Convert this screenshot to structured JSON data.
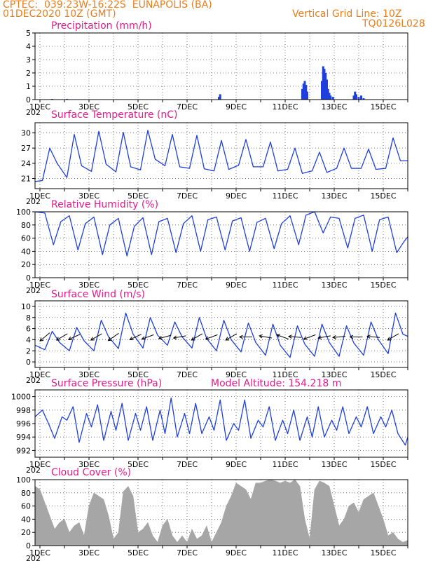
{
  "header": {
    "line1": "CPTEC:  039:23W-16:22S  EUNAPOLIS (BA)",
    "line2": "01DEC2020 10Z (GMT)",
    "right1": "Vertical Grid Line: 10Z",
    "right2": "TQ0126L028"
  },
  "x_axis": {
    "labels": [
      "1DEC",
      "3DEC",
      "5DEC",
      "7DEC",
      "9DEC",
      "11DEC",
      "13DEC",
      "15DEC"
    ],
    "label_days": [
      1,
      3,
      5,
      7,
      9,
      11,
      13,
      15
    ],
    "year_stub": "202"
  },
  "colors": {
    "line": "#1f3fdc",
    "bar": "#1f3fdc",
    "cloud": "#a6a6a6",
    "title": "#e21c8c",
    "header": "#e87e1c"
  },
  "chart_data": [
    {
      "id": "precip",
      "type": "bar",
      "title": "Precipitation (mm/h)",
      "ylim": [
        0,
        5
      ],
      "yticks": [
        0,
        1,
        2,
        3,
        4,
        5
      ],
      "x": [
        1.5,
        2.1,
        8.3,
        8.35,
        11.7,
        11.75,
        11.8,
        11.85,
        11.9,
        12.5,
        12.55,
        12.6,
        12.65,
        12.7,
        12.75,
        12.8,
        12.85,
        12.95,
        13.8,
        13.85,
        13.9,
        14.0,
        14.1,
        14.2
      ],
      "values": [
        0.05,
        0.05,
        0.2,
        0.4,
        0.8,
        1.2,
        1.4,
        1.1,
        0.6,
        1.4,
        2.5,
        2.3,
        2.0,
        1.5,
        0.8,
        0.5,
        0.3,
        0.2,
        0.3,
        0.6,
        0.4,
        0.2,
        0.3,
        0.1
      ]
    },
    {
      "id": "temp",
      "type": "line",
      "title": "Surface Temperature (nC)",
      "ylim": [
        19,
        32
      ],
      "yticks": [
        21,
        24,
        27,
        30
      ],
      "x": [
        0.8,
        1.1,
        1.4,
        1.7,
        2.1,
        2.4,
        2.7,
        3.1,
        3.4,
        3.7,
        4.1,
        4.4,
        4.7,
        5.1,
        5.4,
        5.7,
        6.1,
        6.4,
        6.7,
        7.1,
        7.4,
        7.7,
        8.1,
        8.4,
        8.7,
        9.1,
        9.4,
        9.7,
        10.1,
        10.4,
        10.7,
        11.1,
        11.4,
        11.7,
        12.1,
        12.4,
        12.7,
        13.1,
        13.4,
        13.7,
        14.1,
        14.4,
        14.7,
        15.1,
        15.4,
        15.7,
        16.0
      ],
      "values": [
        20.4,
        20.6,
        27.0,
        24.0,
        21.2,
        29.7,
        23.5,
        22.4,
        30.3,
        23.8,
        22.3,
        30.1,
        23.3,
        22.7,
        30.5,
        24.8,
        23.5,
        29.7,
        23.3,
        23.0,
        29.5,
        22.9,
        22.5,
        28.5,
        22.8,
        23.6,
        28.7,
        23.3,
        23.3,
        28.2,
        22.5,
        22.8,
        27.0,
        22.0,
        22.5,
        26.2,
        22.2,
        23.0,
        27.0,
        23.0,
        23.0,
        26.8,
        22.8,
        23.0,
        29.0,
        24.5,
        24.5
      ]
    },
    {
      "id": "rh",
      "type": "line",
      "title": "Relative Humidity (%)",
      "ylim": [
        0,
        100
      ],
      "yticks": [
        0,
        20,
        40,
        60,
        80,
        100
      ],
      "x": [
        0.8,
        1.2,
        1.55,
        1.85,
        2.2,
        2.55,
        2.85,
        3.2,
        3.55,
        3.85,
        4.2,
        4.55,
        4.85,
        5.2,
        5.55,
        5.85,
        6.2,
        6.55,
        6.85,
        7.2,
        7.55,
        7.85,
        8.2,
        8.55,
        8.85,
        9.2,
        9.55,
        9.85,
        10.2,
        10.55,
        10.85,
        11.2,
        11.55,
        11.85,
        12.2,
        12.55,
        12.85,
        13.2,
        13.55,
        13.85,
        14.2,
        14.55,
        14.85,
        15.2,
        15.55,
        15.85,
        16.0
      ],
      "values": [
        100,
        98,
        50,
        85,
        94,
        42,
        82,
        92,
        35,
        80,
        90,
        33,
        78,
        91,
        35,
        85,
        90,
        38,
        82,
        94,
        40,
        88,
        92,
        42,
        86,
        91,
        40,
        84,
        90,
        44,
        82,
        94,
        50,
        95,
        100,
        68,
        92,
        90,
        45,
        90,
        95,
        40,
        88,
        92,
        38,
        55,
        62
      ]
    },
    {
      "id": "wind",
      "type": "line",
      "title": "Surface Wind (m/s)",
      "ylim": [
        -1,
        11
      ],
      "yticks": [
        0,
        2,
        4,
        6,
        8,
        10
      ],
      "x": [
        0.8,
        1.2,
        1.5,
        1.8,
        2.2,
        2.5,
        2.8,
        3.2,
        3.5,
        3.8,
        4.2,
        4.5,
        4.8,
        5.2,
        5.5,
        5.8,
        6.2,
        6.5,
        6.8,
        7.2,
        7.5,
        7.8,
        8.2,
        8.5,
        8.8,
        9.2,
        9.5,
        9.8,
        10.2,
        10.5,
        10.8,
        11.2,
        11.5,
        11.8,
        12.2,
        12.5,
        12.8,
        13.2,
        13.5,
        13.8,
        14.2,
        14.5,
        14.8,
        15.2,
        15.5,
        15.8,
        16.0
      ],
      "values": [
        3,
        2.2,
        5.5,
        3.5,
        2.0,
        6.2,
        3.8,
        2.0,
        7.5,
        4.5,
        2.4,
        8.8,
        5.0,
        2.5,
        8.0,
        4.8,
        3.0,
        7.2,
        4.5,
        2.5,
        8.0,
        4.2,
        2.0,
        7.5,
        4.0,
        1.8,
        7.0,
        3.5,
        1.2,
        6.8,
        3.0,
        0.8,
        6.5,
        3.2,
        1.0,
        6.8,
        3.5,
        1.0,
        6.5,
        3.4,
        1.2,
        7.2,
        4.0,
        1.5,
        8.8,
        5.0,
        4.6
      ],
      "arrows": [
        {
          "day": 1.2,
          "dir_deg": 220
        },
        {
          "day": 1.9,
          "dir_deg": 210
        },
        {
          "day": 2.4,
          "dir_deg": 205
        },
        {
          "day": 3.3,
          "dir_deg": 210
        },
        {
          "day": 4.0,
          "dir_deg": 215
        },
        {
          "day": 4.9,
          "dir_deg": 205
        },
        {
          "day": 5.4,
          "dir_deg": 200
        },
        {
          "day": 6.1,
          "dir_deg": 195
        },
        {
          "day": 6.7,
          "dir_deg": 190
        },
        {
          "day": 7.4,
          "dir_deg": 210
        },
        {
          "day": 8.0,
          "dir_deg": 200
        },
        {
          "day": 8.8,
          "dir_deg": 210
        },
        {
          "day": 9.4,
          "dir_deg": 180
        },
        {
          "day": 10.2,
          "dir_deg": 170
        },
        {
          "day": 10.9,
          "dir_deg": 160
        },
        {
          "day": 11.4,
          "dir_deg": 175
        },
        {
          "day": 12.0,
          "dir_deg": 200
        },
        {
          "day": 12.6,
          "dir_deg": 190
        },
        {
          "day": 13.2,
          "dir_deg": 185
        },
        {
          "day": 13.9,
          "dir_deg": 180
        },
        {
          "day": 14.6,
          "dir_deg": 175
        },
        {
          "day": 15.4,
          "dir_deg": 210
        }
      ]
    },
    {
      "id": "pres",
      "type": "line",
      "title": "Surface Pressure (hPa)",
      "subtitle": "Model Altitude: 154.218 m",
      "ylim": [
        991,
        1001
      ],
      "yticks": [
        992,
        994,
        996,
        998,
        1000
      ],
      "x": [
        0.8,
        1.1,
        1.35,
        1.6,
        1.9,
        2.1,
        2.35,
        2.6,
        2.9,
        3.1,
        3.35,
        3.6,
        3.9,
        4.1,
        4.35,
        4.6,
        4.9,
        5.1,
        5.35,
        5.6,
        5.9,
        6.1,
        6.35,
        6.6,
        6.9,
        7.1,
        7.35,
        7.6,
        7.9,
        8.1,
        8.35,
        8.6,
        8.9,
        9.1,
        9.35,
        9.6,
        9.9,
        10.1,
        10.35,
        10.6,
        10.9,
        11.1,
        11.35,
        11.6,
        11.9,
        12.1,
        12.35,
        12.6,
        12.9,
        13.1,
        13.35,
        13.6,
        13.9,
        14.1,
        14.35,
        14.6,
        14.9,
        15.1,
        15.35,
        15.6,
        15.9,
        16.0
      ],
      "values": [
        997,
        998,
        996,
        993.8,
        997,
        996.5,
        998.5,
        993.2,
        997.5,
        995.5,
        998.8,
        993.5,
        997.8,
        995,
        999,
        993.5,
        997.5,
        995,
        998.5,
        993.5,
        998,
        994.5,
        999.8,
        994,
        997.5,
        994.5,
        999,
        994.5,
        997,
        995,
        999.5,
        993.5,
        996,
        995,
        999.5,
        993.8,
        996.5,
        995.5,
        998.5,
        993.5,
        996.5,
        994.5,
        998,
        993.5,
        997,
        994,
        998.5,
        994,
        996.5,
        995,
        998.5,
        994.5,
        997,
        995.5,
        998.5,
        994.5,
        997,
        995.5,
        998,
        994.5,
        992.8,
        994
      ]
    },
    {
      "id": "cloud",
      "type": "area",
      "title": "Cloud Cover (%)",
      "ylim": [
        0,
        100
      ],
      "yticks": [
        0,
        20,
        40,
        60,
        80,
        100
      ],
      "x": [
        0.8,
        1.0,
        1.2,
        1.4,
        1.6,
        1.8,
        2.0,
        2.2,
        2.4,
        2.6,
        2.8,
        3.0,
        3.2,
        3.4,
        3.6,
        3.8,
        4.0,
        4.2,
        4.4,
        4.6,
        4.8,
        5.0,
        5.2,
        5.4,
        5.6,
        5.8,
        6.0,
        6.2,
        6.4,
        6.6,
        6.8,
        7.0,
        7.2,
        7.4,
        7.6,
        7.8,
        8.0,
        8.2,
        8.4,
        8.6,
        8.8,
        9.0,
        9.2,
        9.4,
        9.6,
        9.8,
        10.0,
        10.2,
        10.4,
        10.6,
        10.8,
        11.0,
        11.2,
        11.4,
        11.6,
        11.8,
        12.0,
        12.2,
        12.4,
        12.6,
        12.8,
        13.0,
        13.2,
        13.4,
        13.6,
        13.8,
        14.0,
        14.2,
        14.4,
        14.6,
        14.8,
        15.0,
        15.2,
        15.4,
        15.6,
        15.8,
        16.0
      ],
      "values": [
        90,
        85,
        65,
        45,
        25,
        35,
        40,
        20,
        30,
        35,
        15,
        60,
        80,
        75,
        70,
        45,
        10,
        20,
        82,
        90,
        75,
        20,
        25,
        35,
        15,
        5,
        30,
        40,
        15,
        5,
        15,
        5,
        25,
        10,
        15,
        30,
        5,
        20,
        35,
        60,
        75,
        95,
        90,
        85,
        70,
        95,
        95,
        98,
        100,
        98,
        95,
        98,
        95,
        100,
        90,
        40,
        10,
        85,
        98,
        95,
        90,
        60,
        30,
        40,
        60,
        65,
        50,
        70,
        75,
        80,
        60,
        40,
        15,
        20,
        10,
        5,
        8
      ]
    }
  ]
}
